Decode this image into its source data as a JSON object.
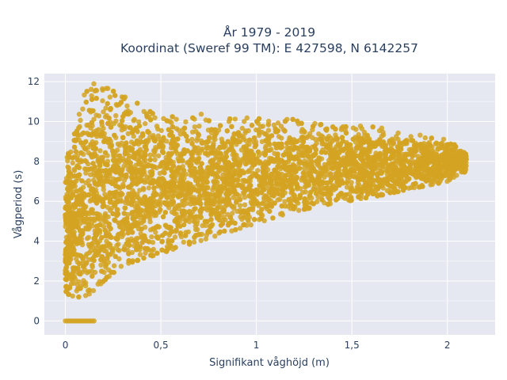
{
  "chart_data": {
    "type": "scatter",
    "title_line1": "År 1979 - 2019",
    "title_line2": "Koordinat (Sweref 99 TM): E 427598, N 6142257",
    "xlabel": "Signifikant våghöjd (m)",
    "ylabel": "Vågperiod (s)",
    "xlim": [
      -0.11,
      2.25
    ],
    "ylim": [
      -0.7,
      12.4
    ],
    "x_ticks": [
      0,
      0.5,
      1,
      1.5,
      2
    ],
    "x_tick_labels": [
      "0",
      "0,5",
      "1",
      "1,5",
      "2"
    ],
    "y_ticks": [
      0,
      2,
      4,
      6,
      8,
      10,
      12
    ],
    "y_tick_labels": [
      "0",
      "2",
      "4",
      "6",
      "8",
      "10",
      "12"
    ],
    "grid": true,
    "legend": "none",
    "point_color": "#d4a322",
    "plot_background": "#e5e8f0",
    "series": [
      {
        "envelope": {
          "x": [
            0.0,
            0.05,
            0.1,
            0.15,
            0.2,
            0.25,
            0.3,
            0.4,
            0.5,
            0.6,
            0.7,
            0.8,
            1.0,
            1.2,
            1.4,
            1.6,
            1.8,
            2.0,
            2.1
          ],
          "y_min": [
            1.4,
            1.2,
            1.2,
            1.5,
            2.0,
            2.4,
            2.8,
            3.1,
            3.4,
            3.7,
            4.0,
            4.3,
            4.9,
            5.5,
            5.9,
            6.2,
            6.6,
            7.0,
            7.5
          ],
          "y_max": [
            8.0,
            9.5,
            11.5,
            11.9,
            11.6,
            11.8,
            11.6,
            10.8,
            10.3,
            10.2,
            10.4,
            10.1,
            10.2,
            10.1,
            9.8,
            9.8,
            9.4,
            9.1,
            8.4
          ]
        },
        "zero_points_x_range": [
          0.0,
          0.15
        ],
        "zero_points_y": 0
      }
    ]
  }
}
